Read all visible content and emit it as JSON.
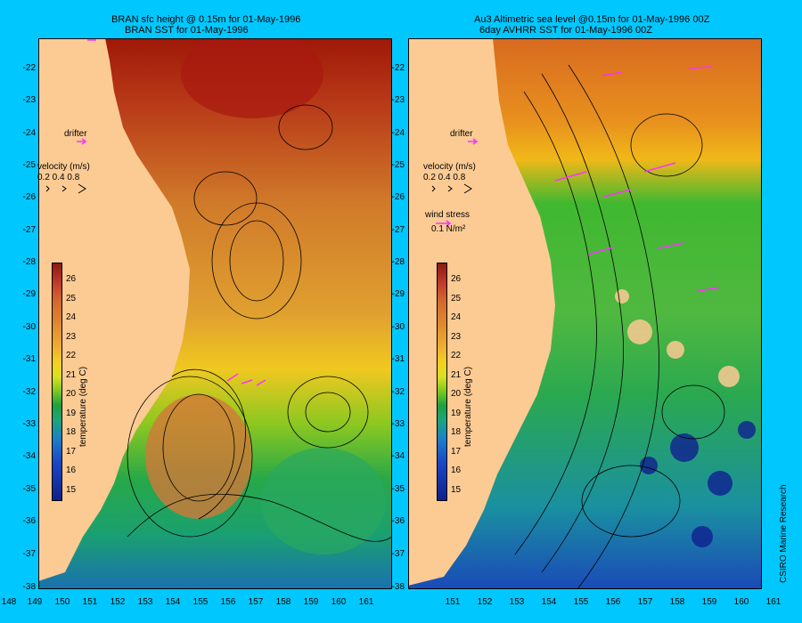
{
  "left_panel": {
    "title_line1": "BRAN sfc height @ 0.15m for 01-May-1996",
    "title_line2": "BRAN SST for 01-May-1996",
    "drifter_label": "drifter",
    "velocity_label": "velocity (m/s)",
    "velocity_scale": "0.2 0.4 0.8",
    "colorbar_title": "temperature (deg C)"
  },
  "right_panel": {
    "title_line1": "Au3 Altimetric sea level  @0.15m  for 01-May-1996 00Z",
    "title_line2": "6day AVHRR SST for 01-May-1996 00Z",
    "drifter_label": "drifter",
    "velocity_label": "velocity (m/s)",
    "velocity_scale": "0.2 0.4 0.8",
    "wind_label": "wind stress",
    "wind_scale": "0.1 N/m²",
    "colorbar_title": "temperature (deg C)"
  },
  "y_ticks": [
    "-22",
    "-23",
    "-24",
    "-25",
    "-26",
    "-27",
    "-28",
    "-29",
    "-30",
    "-31",
    "-32",
    "-33",
    "-34",
    "-35",
    "-36",
    "-37",
    "-38"
  ],
  "x_ticks_left": [
    "148",
    "149",
    "150",
    "151",
    "152",
    "153",
    "154",
    "155",
    "156",
    "157",
    "158",
    "159",
    "160",
    "161"
  ],
  "x_ticks_right": [
    "151",
    "152",
    "153",
    "154",
    "155",
    "156",
    "157",
    "158",
    "159",
    "160",
    "161"
  ],
  "colorbar_ticks": [
    "26",
    "25",
    "24",
    "23",
    "22",
    "21",
    "20",
    "19",
    "18",
    "17",
    "16",
    "15"
  ],
  "credit": "CSIRO Marine Research",
  "colors": {
    "background": "#00c8ff",
    "land": "#fccb94",
    "arrow": "#ff30ff"
  }
}
